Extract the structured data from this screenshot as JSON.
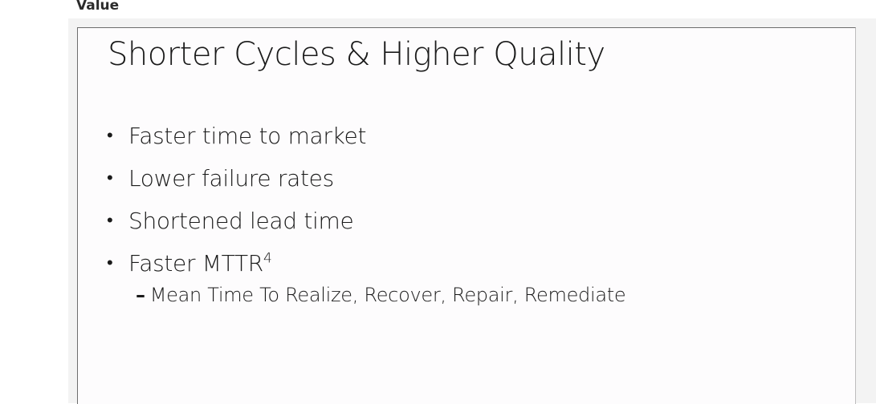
{
  "column_header": "Value",
  "slide": {
    "title": "Shorter Cycles & Higher Quality",
    "bullet_char": "•",
    "bullets": [
      {
        "text": "Faster time to market",
        "sup": ""
      },
      {
        "text": "Lower failure rates",
        "sup": ""
      },
      {
        "text": "Shortened lead time",
        "sup": ""
      },
      {
        "text": "Faster MTTR",
        "sup": "4"
      }
    ],
    "sub_dash": "–",
    "sub_bullet": "Mean Time To Realize, Recover, Repair, Remediate"
  }
}
